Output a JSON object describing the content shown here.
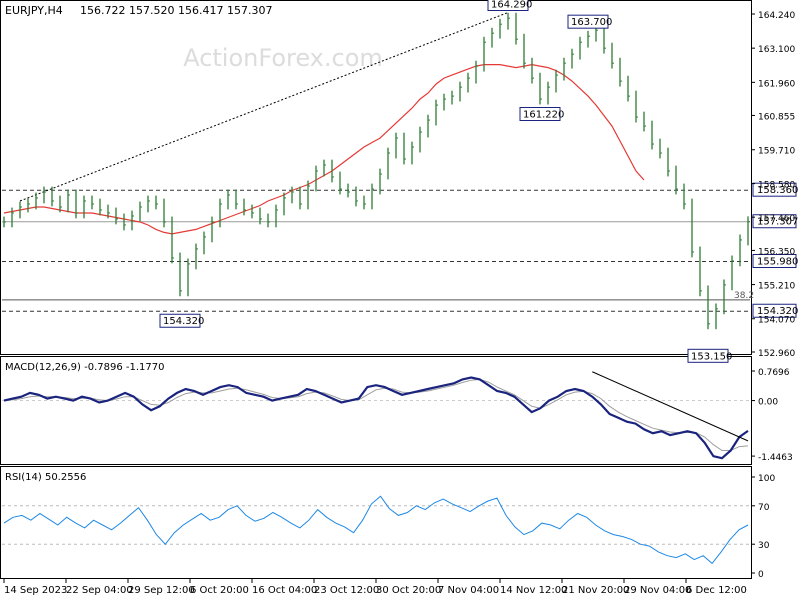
{
  "header": {
    "symbol_info": "EURJPY,H4",
    "ohlc": "156.722 157.520 156.417 157.307"
  },
  "watermark": "ActionForex.com",
  "colors": {
    "price": "#2e7d32",
    "ema": "#e53935",
    "macd": "#1a237e",
    "signal": "#9e9e9e",
    "rsi": "#1e88e5",
    "grid": "#d0d0d0",
    "label_border": "#1a237e"
  },
  "chart_data": [
    {
      "type": "line",
      "panel": "price",
      "ylim": [
        152.96,
        164.24
      ],
      "y_ticks": [
        "164.240",
        "163.100",
        "161.960",
        "160.855",
        "159.710",
        "158.580",
        "157.460",
        "156.350",
        "155.210",
        "154.070",
        "152.960"
      ],
      "x_ticks": [
        "14 Sep 2023",
        "22 Sep 04:00",
        "29 Sep 12:00",
        "6 Oct 20:00",
        "16 Oct 04:00",
        "23 Oct 12:00",
        "30 Oct 20:00",
        "7 Nov 04:00",
        "14 Nov 12:00",
        "21 Nov 20:00",
        "29 Nov 04:00",
        "6 Dec 12:00"
      ],
      "series": [
        {
          "key": "price",
          "values": [
            157.3,
            157.6,
            157.8,
            157.9,
            158.1,
            158.3,
            158.0,
            157.8,
            158.2,
            157.6,
            158.0,
            157.9,
            157.7,
            157.6,
            157.4,
            157.2,
            157.5,
            157.8,
            158.0,
            157.9,
            157.3,
            156.1,
            155.0,
            155.9,
            156.4,
            156.8,
            157.3,
            157.9,
            158.2,
            157.9,
            157.7,
            157.6,
            157.4,
            157.3,
            157.7,
            158.1,
            158.3,
            157.9,
            158.5,
            159.0,
            159.2,
            158.8,
            158.4,
            158.3,
            158.0,
            157.9,
            158.4,
            158.9,
            159.6,
            160.1,
            159.4,
            159.8,
            160.3,
            160.7,
            161.2,
            161.4,
            161.5,
            161.8,
            162.1,
            162.5,
            163.3,
            163.6,
            163.9,
            164.1,
            163.4,
            162.6,
            162.1,
            161.4,
            161.8,
            162.2,
            162.6,
            162.9,
            163.3,
            163.5,
            163.7,
            163.1,
            162.6,
            162.0,
            161.5,
            160.8,
            160.5,
            159.9,
            159.6,
            159.0,
            158.4,
            157.9,
            156.3,
            155.0,
            153.9,
            154.4,
            155.2,
            156.0,
            156.7,
            157.307
          ]
        },
        {
          "key": "ema",
          "values": [
            157.6,
            157.65,
            157.7,
            157.75,
            157.8,
            157.8,
            157.75,
            157.7,
            157.65,
            157.6,
            157.6,
            157.6,
            157.55,
            157.5,
            157.45,
            157.4,
            157.35,
            157.3,
            157.2,
            157.05,
            156.95,
            156.9,
            156.95,
            157.0,
            157.05,
            157.15,
            157.25,
            157.35,
            157.45,
            157.55,
            157.65,
            157.75,
            157.85,
            158.0,
            158.1,
            158.2,
            158.35,
            158.45,
            158.55,
            158.7,
            158.85,
            159.0,
            159.2,
            159.4,
            159.6,
            159.8,
            159.95,
            160.1,
            160.35,
            160.6,
            160.85,
            161.1,
            161.4,
            161.6,
            161.9,
            162.1,
            162.2,
            162.3,
            162.4,
            162.5,
            162.55,
            162.55,
            162.55,
            162.5,
            162.45,
            162.5,
            162.55,
            162.5,
            162.45,
            162.35,
            162.2,
            162.0,
            161.75,
            161.5,
            161.2,
            160.85,
            160.5,
            160.0,
            159.5,
            159.0,
            158.7
          ],
          "x_end_index": 80
        }
      ],
      "levels": [
        {
          "value": 158.36,
          "label": "158.360",
          "style": "dashed"
        },
        {
          "value": 157.307,
          "label": "157.307",
          "style": "solid"
        },
        {
          "value": 155.98,
          "label": "155.980",
          "style": "dashed"
        },
        {
          "value": 154.32,
          "label": "154.320",
          "style": "dashed"
        }
      ],
      "fib_level": {
        "value": 154.7,
        "label": "38.2"
      },
      "annotations": [
        {
          "label": "164.290",
          "index": 63,
          "value": 164.29
        },
        {
          "label": "163.700",
          "index": 73,
          "value": 163.7
        },
        {
          "label": "161.220",
          "index": 67,
          "value": 161.22
        },
        {
          "label": "154.320",
          "index": 22,
          "value": 154.32
        },
        {
          "label": "153.150",
          "index": 88,
          "value": 153.15
        }
      ],
      "trendline": {
        "from_index": 2,
        "from_value": 158.0,
        "to_index": 63,
        "to_value": 164.29
      }
    },
    {
      "type": "line",
      "panel": "macd",
      "title": "MACD(12,26,9) -0.7896 -1.1770",
      "ylim": [
        -1.6,
        0.9
      ],
      "y_ticks": [
        "0.7696",
        "0.00",
        "-1.4463"
      ],
      "series": [
        {
          "key": "macd",
          "values": [
            0.0,
            0.05,
            0.1,
            0.2,
            0.15,
            0.05,
            0.1,
            0.05,
            0.0,
            0.1,
            0.05,
            -0.05,
            0.0,
            0.1,
            0.2,
            0.1,
            -0.1,
            -0.25,
            -0.15,
            0.05,
            0.2,
            0.3,
            0.25,
            0.15,
            0.25,
            0.35,
            0.4,
            0.35,
            0.2,
            0.15,
            0.1,
            0.0,
            0.05,
            0.1,
            0.15,
            0.3,
            0.25,
            0.15,
            0.05,
            -0.05,
            0.0,
            0.05,
            0.35,
            0.4,
            0.35,
            0.25,
            0.15,
            0.2,
            0.25,
            0.3,
            0.35,
            0.4,
            0.45,
            0.55,
            0.6,
            0.55,
            0.4,
            0.25,
            0.2,
            0.1,
            -0.1,
            -0.3,
            -0.2,
            0.0,
            0.1,
            0.25,
            0.3,
            0.25,
            0.1,
            -0.1,
            -0.35,
            -0.45,
            -0.55,
            -0.6,
            -0.75,
            -0.85,
            -0.8,
            -0.9,
            -0.85,
            -0.8,
            -0.85,
            -1.1,
            -1.45,
            -1.5,
            -1.3,
            -0.95,
            -0.79
          ]
        },
        {
          "key": "signal",
          "values": [
            0.0,
            0.02,
            0.05,
            0.1,
            0.12,
            0.1,
            0.1,
            0.08,
            0.05,
            0.06,
            0.06,
            0.02,
            0.0,
            0.04,
            0.1,
            0.1,
            0.0,
            -0.1,
            -0.12,
            -0.05,
            0.08,
            0.18,
            0.22,
            0.2,
            0.2,
            0.25,
            0.3,
            0.32,
            0.28,
            0.22,
            0.16,
            0.08,
            0.05,
            0.07,
            0.1,
            0.18,
            0.22,
            0.2,
            0.12,
            0.03,
            0.0,
            0.02,
            0.15,
            0.28,
            0.32,
            0.3,
            0.22,
            0.2,
            0.22,
            0.25,
            0.3,
            0.35,
            0.4,
            0.47,
            0.53,
            0.55,
            0.48,
            0.35,
            0.25,
            0.15,
            0.0,
            -0.15,
            -0.2,
            -0.1,
            0.02,
            0.15,
            0.22,
            0.24,
            0.18,
            0.05,
            -0.15,
            -0.3,
            -0.42,
            -0.52,
            -0.62,
            -0.72,
            -0.77,
            -0.82,
            -0.84,
            -0.83,
            -0.84,
            -0.95,
            -1.15,
            -1.3,
            -1.3,
            -1.2,
            -1.18
          ]
        }
      ],
      "trendline": {
        "from_index": 68,
        "from_value": 0.75,
        "to_index": 86,
        "to_value": -1.05
      }
    },
    {
      "type": "line",
      "panel": "rsi",
      "title": "RSI(14) 50.2556",
      "ylim": [
        0,
        100
      ],
      "y_ticks": [
        "100",
        "70",
        "30",
        "0"
      ],
      "series": [
        {
          "key": "rsi",
          "values": [
            52,
            58,
            60,
            55,
            62,
            56,
            50,
            58,
            52,
            47,
            55,
            50,
            45,
            52,
            60,
            68,
            55,
            40,
            30,
            42,
            50,
            56,
            62,
            55,
            58,
            66,
            70,
            60,
            54,
            57,
            63,
            58,
            52,
            47,
            55,
            66,
            58,
            52,
            48,
            42,
            55,
            72,
            80,
            67,
            60,
            63,
            70,
            66,
            73,
            77,
            72,
            68,
            64,
            70,
            75,
            78,
            60,
            48,
            40,
            44,
            52,
            50,
            46,
            55,
            62,
            58,
            50,
            44,
            40,
            38,
            35,
            30,
            28,
            22,
            18,
            16,
            20,
            14,
            18,
            10,
            22,
            35,
            45,
            50
          ]
        }
      ]
    }
  ]
}
